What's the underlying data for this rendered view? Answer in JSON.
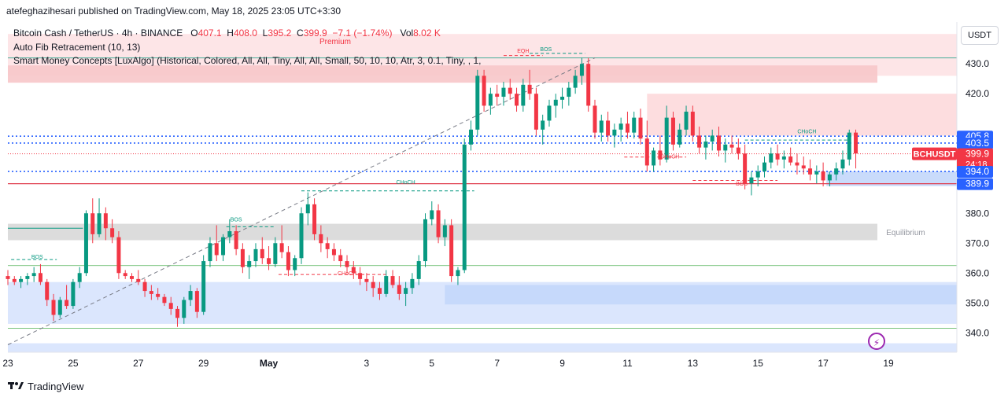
{
  "header": {
    "publisher": "atefeghazihesari published on TradingView.com, May 18, 2025 23:05 UTC+3:30"
  },
  "legend": {
    "symbol": "Bitcoin Cash / TetherUS · 4h · BINANCE",
    "open_label": "O",
    "open": "407.1",
    "high_label": "H",
    "high": "408.0",
    "low_label": "L",
    "low": "395.2",
    "close_label": "C",
    "close": "399.9",
    "change": "−7.1 (−1.74%)",
    "vol_label": "Vol",
    "vol": "8.02 K",
    "indicator_1": "Auto Fib Retracement (10, 13)",
    "indicator_2": "Smart Money Concepts [LuxAlgo] (Historical, Colored, All, All, Tiny, All, All, Small, 50, 10, 10, Atr, 3, 0.1, Tiny, , 1,"
  },
  "currency": "USDT",
  "branding": "TradingView",
  "icons": {
    "flash": "lightning-icon",
    "logo": "tradingview-logo-icon"
  },
  "colors": {
    "up": "#089981",
    "down": "#f23645",
    "premium_zone": "#f7c6c9",
    "discount_zone": "#c3d7fb",
    "equilibrium": "#dcdcdc",
    "blue_level": "#2962ff"
  },
  "chart_data": {
    "type": "candlestick",
    "symbol": "BCHUSDT",
    "timeframe": "4h",
    "x_axis": {
      "ticks": [
        {
          "label": "23",
          "day": 23
        },
        {
          "label": "25",
          "day": 25
        },
        {
          "label": "27",
          "day": 27
        },
        {
          "label": "29",
          "day": 29
        },
        {
          "label": "May",
          "day": 31
        },
        {
          "label": "3",
          "day": 34
        },
        {
          "label": "5",
          "day": 36
        },
        {
          "label": "7",
          "day": 38
        },
        {
          "label": "9",
          "day": 40
        },
        {
          "label": "11",
          "day": 42
        },
        {
          "label": "13",
          "day": 44
        },
        {
          "label": "15",
          "day": 46
        },
        {
          "label": "17",
          "day": 48
        },
        {
          "label": "19",
          "day": 50
        }
      ],
      "day_range": [
        23,
        50
      ]
    },
    "y_axis": {
      "ticks": [
        340.0,
        350.0,
        360.0,
        370.0,
        380.0,
        420.0,
        430.0
      ],
      "tick_labels": [
        "340.0",
        "350.0",
        "360.0",
        "370.0",
        "380.0",
        "420.0",
        "430.0"
      ],
      "ylim": [
        333.5,
        444.0
      ]
    },
    "price_labels": [
      {
        "value": 405.8,
        "text": "405.8",
        "kind": "level"
      },
      {
        "value": 403.5,
        "text": "403.5",
        "kind": "level"
      },
      {
        "value": 399.9,
        "text": "399.9",
        "kind": "last",
        "symbol": "BCHUSDT",
        "countdown": "24:18"
      },
      {
        "value": 394.0,
        "text": "394.0",
        "kind": "level"
      },
      {
        "value": 389.9,
        "text": "389.9",
        "kind": "level"
      }
    ],
    "zones": {
      "premium": {
        "label": "Premium",
        "from": 426.0,
        "to": 440.0
      },
      "equilibrium": {
        "label": "Equilibrium",
        "from": 371.0,
        "to": 376.5
      },
      "discount": {
        "label": "",
        "from": 335.0,
        "to": 357.0
      }
    },
    "structure_labels": [
      {
        "text": "BOS",
        "day": 23.9,
        "price": 364.0,
        "color": "up"
      },
      {
        "text": "BOS",
        "day": 30.0,
        "price": 376.5,
        "color": "up"
      },
      {
        "text": "CHoCH",
        "day": 35.2,
        "price": 389.0,
        "color": "up"
      },
      {
        "text": "CHoCH",
        "day": 33.4,
        "price": 358.5,
        "color": "down"
      },
      {
        "text": "EQH",
        "day": 38.8,
        "price": 433.0,
        "color": "down"
      },
      {
        "text": "BOS",
        "day": 39.5,
        "price": 433.5,
        "color": "up"
      },
      {
        "text": "CHoCH",
        "day": 43.3,
        "price": 397.5,
        "color": "down"
      },
      {
        "text": "CHoCH",
        "day": 47.5,
        "price": 406.0,
        "color": "up"
      },
      {
        "text": "BOS",
        "day": 45.5,
        "price": 388.5,
        "color": "down"
      }
    ],
    "candles": [
      [
        23.0,
        359,
        361,
        356,
        358
      ],
      [
        23.2,
        358,
        359,
        356,
        357
      ],
      [
        23.4,
        357,
        359,
        355,
        358
      ],
      [
        23.6,
        358,
        360,
        356,
        359
      ],
      [
        23.8,
        359,
        362,
        357,
        360
      ],
      [
        24.0,
        360,
        363,
        356,
        357
      ],
      [
        24.2,
        357,
        358,
        349,
        351
      ],
      [
        24.4,
        351,
        353,
        344,
        346
      ],
      [
        24.6,
        346,
        352,
        345,
        351
      ],
      [
        24.8,
        351,
        356,
        348,
        349
      ],
      [
        25.0,
        349,
        358,
        348,
        357
      ],
      [
        25.2,
        357,
        362,
        355,
        360
      ],
      [
        25.4,
        360,
        381,
        359,
        380
      ],
      [
        25.6,
        380,
        385,
        370,
        373
      ],
      [
        25.8,
        373,
        385,
        372,
        380
      ],
      [
        26.0,
        380,
        382,
        371,
        375
      ],
      [
        26.2,
        375,
        378,
        370,
        372
      ],
      [
        26.4,
        372,
        374,
        358,
        360
      ],
      [
        26.6,
        360,
        361,
        358,
        359
      ],
      [
        26.8,
        359,
        360,
        357,
        358
      ],
      [
        27.0,
        358,
        361,
        356,
        357
      ],
      [
        27.2,
        357,
        358,
        352,
        354
      ],
      [
        27.4,
        354,
        356,
        351,
        353
      ],
      [
        27.6,
        353,
        355,
        351,
        352
      ],
      [
        27.8,
        352,
        353,
        349,
        350
      ],
      [
        28.0,
        350,
        352,
        346,
        348
      ],
      [
        28.2,
        348,
        349,
        342,
        345
      ],
      [
        28.4,
        345,
        352,
        343,
        351
      ],
      [
        28.6,
        351,
        356,
        349,
        354
      ],
      [
        28.8,
        354,
        355,
        345,
        347
      ],
      [
        29.0,
        347,
        366,
        346,
        364
      ],
      [
        29.2,
        364,
        372,
        362,
        370
      ],
      [
        29.4,
        370,
        376,
        364,
        366
      ],
      [
        29.6,
        366,
        373,
        364,
        372
      ],
      [
        29.8,
        372,
        378,
        370,
        374
      ],
      [
        30.0,
        374,
        376,
        366,
        368
      ],
      [
        30.2,
        368,
        370,
        360,
        362
      ],
      [
        30.4,
        362,
        366,
        358,
        364
      ],
      [
        30.6,
        364,
        370,
        362,
        368
      ],
      [
        30.8,
        368,
        372,
        363,
        365
      ],
      [
        31.0,
        365,
        369,
        361,
        363
      ],
      [
        31.2,
        363,
        372,
        362,
        370
      ],
      [
        31.4,
        370,
        376,
        365,
        367
      ],
      [
        31.6,
        367,
        369,
        359,
        361
      ],
      [
        31.8,
        361,
        366,
        359,
        365
      ],
      [
        32.0,
        365,
        382,
        363,
        380
      ],
      [
        32.2,
        380,
        387,
        376,
        383
      ],
      [
        32.4,
        383,
        385,
        371,
        373
      ],
      [
        32.6,
        373,
        376,
        367,
        370
      ],
      [
        32.8,
        370,
        372,
        365,
        368
      ],
      [
        33.0,
        368,
        370,
        364,
        366
      ],
      [
        33.2,
        366,
        368,
        362,
        364
      ],
      [
        33.4,
        364,
        366,
        360,
        362
      ],
      [
        33.6,
        362,
        364,
        358,
        360
      ],
      [
        33.8,
        360,
        362,
        356,
        358
      ],
      [
        34.0,
        358,
        360,
        354,
        357
      ],
      [
        34.2,
        357,
        359,
        352,
        355
      ],
      [
        34.4,
        355,
        357,
        351,
        353
      ],
      [
        34.6,
        353,
        361,
        352,
        359
      ],
      [
        34.8,
        359,
        361,
        355,
        356
      ],
      [
        35.0,
        356,
        359,
        351,
        353
      ],
      [
        35.2,
        353,
        357,
        349,
        355
      ],
      [
        35.4,
        355,
        360,
        353,
        358
      ],
      [
        35.6,
        358,
        366,
        356,
        364
      ],
      [
        35.8,
        364,
        380,
        362,
        378
      ],
      [
        36.0,
        378,
        384,
        376,
        381
      ],
      [
        36.2,
        381,
        383,
        370,
        372
      ],
      [
        36.4,
        372,
        378,
        369,
        376
      ],
      [
        36.6,
        376,
        378,
        357,
        359
      ],
      [
        36.8,
        359,
        362,
        356,
        361
      ],
      [
        37.0,
        361,
        405,
        360,
        403
      ],
      [
        37.2,
        403,
        411,
        401,
        408
      ],
      [
        37.4,
        408,
        428,
        406,
        426
      ],
      [
        37.6,
        426,
        428,
        414,
        416
      ],
      [
        37.8,
        416,
        422,
        413,
        420
      ],
      [
        38.0,
        420,
        423,
        416,
        419
      ],
      [
        38.2,
        419,
        424,
        416,
        422
      ],
      [
        38.4,
        422,
        425,
        418,
        420
      ],
      [
        38.6,
        420,
        422,
        414,
        416
      ],
      [
        38.8,
        416,
        425,
        414,
        423
      ],
      [
        39.0,
        423,
        428,
        418,
        420
      ],
      [
        39.2,
        420,
        422,
        406,
        408
      ],
      [
        39.4,
        408,
        413,
        403,
        411
      ],
      [
        39.6,
        411,
        418,
        409,
        416
      ],
      [
        39.8,
        416,
        420,
        412,
        418
      ],
      [
        40.0,
        418,
        422,
        415,
        419
      ],
      [
        40.2,
        419,
        424,
        416,
        422
      ],
      [
        40.4,
        422,
        428,
        420,
        426
      ],
      [
        40.6,
        426,
        432,
        423,
        430
      ],
      [
        40.8,
        430,
        432,
        414,
        416
      ],
      [
        41.0,
        416,
        418,
        405,
        407
      ],
      [
        41.2,
        407,
        413,
        404,
        411
      ],
      [
        41.4,
        411,
        414,
        404,
        406
      ],
      [
        41.6,
        406,
        410,
        402,
        408
      ],
      [
        41.8,
        408,
        412,
        404,
        410
      ],
      [
        42.0,
        410,
        414,
        405,
        407
      ],
      [
        42.2,
        407,
        414,
        405,
        412
      ],
      [
        42.4,
        412,
        415,
        403,
        405
      ],
      [
        42.6,
        405,
        411,
        394,
        396
      ],
      [
        42.8,
        396,
        402,
        394,
        401
      ],
      [
        43.0,
        401,
        406,
        396,
        398
      ],
      [
        43.2,
        398,
        416,
        397,
        412
      ],
      [
        43.4,
        412,
        414,
        401,
        403
      ],
      [
        43.6,
        403,
        410,
        402,
        408
      ],
      [
        43.8,
        408,
        416,
        406,
        414
      ],
      [
        44.0,
        414,
        416,
        404,
        406
      ],
      [
        44.2,
        406,
        409,
        400,
        402
      ],
      [
        44.4,
        402,
        406,
        398,
        404
      ],
      [
        44.6,
        404,
        408,
        401,
        406
      ],
      [
        44.8,
        406,
        409,
        399,
        401
      ],
      [
        45.0,
        401,
        405,
        397,
        403
      ],
      [
        45.2,
        403,
        406,
        400,
        402
      ],
      [
        45.4,
        402,
        405,
        398,
        400
      ],
      [
        45.6,
        400,
        403,
        388,
        390
      ],
      [
        45.8,
        390,
        394,
        386,
        392
      ],
      [
        46.0,
        392,
        396,
        389,
        394
      ],
      [
        46.2,
        394,
        399,
        392,
        397
      ],
      [
        46.4,
        397,
        402,
        395,
        400
      ],
      [
        46.6,
        400,
        403,
        396,
        398
      ],
      [
        46.8,
        398,
        401,
        395,
        399
      ],
      [
        47.0,
        399,
        402,
        396,
        397
      ],
      [
        47.2,
        397,
        400,
        393,
        396
      ],
      [
        47.4,
        396,
        399,
        393,
        395
      ],
      [
        47.6,
        395,
        398,
        391,
        393
      ],
      [
        47.8,
        393,
        396,
        390,
        394
      ],
      [
        48.0,
        394,
        397,
        389,
        391
      ],
      [
        48.2,
        391,
        394,
        389,
        393
      ],
      [
        48.4,
        393,
        397,
        391,
        395
      ],
      [
        48.6,
        395,
        401,
        393,
        398
      ],
      [
        48.8,
        398,
        408,
        396,
        407
      ],
      [
        49.0,
        407,
        408,
        395,
        400
      ]
    ]
  }
}
